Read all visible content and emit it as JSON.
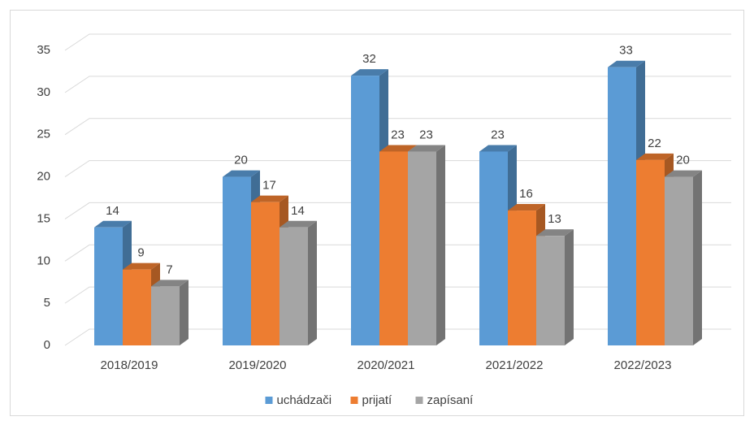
{
  "chart_data": {
    "type": "bar3d",
    "categories": [
      "2018/2019",
      "2019/2020",
      "2020/2021",
      "2021/2022",
      "2022/2023"
    ],
    "series": [
      {
        "name": "uchádzači",
        "color": "#5b9bd5",
        "values": [
          14,
          20,
          32,
          23,
          33
        ]
      },
      {
        "name": "prijatí",
        "color": "#ed7d31",
        "values": [
          9,
          17,
          23,
          16,
          22
        ]
      },
      {
        "name": "zapísaní",
        "color": "#a5a5a5",
        "values": [
          7,
          14,
          23,
          13,
          20
        ]
      }
    ],
    "ylim": [
      0,
      35
    ],
    "yticks": [
      0,
      5,
      10,
      15,
      20,
      25,
      30,
      35
    ],
    "grid": true,
    "legend": "bottom"
  }
}
